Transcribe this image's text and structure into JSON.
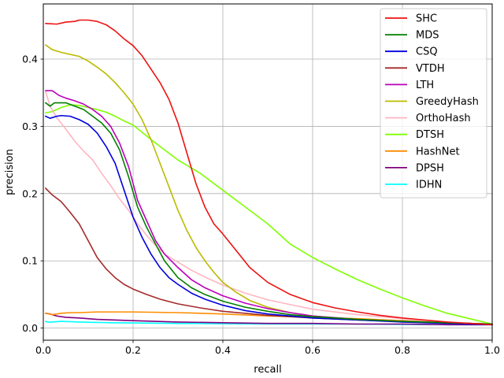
{
  "chart_data": {
    "type": "line",
    "title": "",
    "xlabel": "recall",
    "ylabel": "precision",
    "xlim": [
      0.0,
      1.0
    ],
    "ylim": [
      -0.018,
      0.482
    ],
    "xticks": [
      0.0,
      0.2,
      0.4,
      0.6,
      0.8,
      1.0
    ],
    "xtick_labels": [
      "0.0",
      "0.2",
      "0.4",
      "0.6",
      "0.8",
      "1.0"
    ],
    "yticks": [
      0.0,
      0.1,
      0.2,
      0.3,
      0.4
    ],
    "ytick_labels": [
      "0.0",
      "0.1",
      "0.2",
      "0.3",
      "0.4"
    ],
    "grid": true,
    "legend_position": "top-right",
    "series": [
      {
        "name": "SHC",
        "color": "#ee1111",
        "x": [
          0.005,
          0.03,
          0.05,
          0.07,
          0.08,
          0.1,
          0.12,
          0.14,
          0.16,
          0.18,
          0.2,
          0.22,
          0.24,
          0.26,
          0.28,
          0.3,
          0.32,
          0.34,
          0.36,
          0.38,
          0.4,
          0.43,
          0.46,
          0.5,
          0.55,
          0.6,
          0.65,
          0.7,
          0.75,
          0.8,
          0.85,
          0.9,
          0.95,
          1.0
        ],
        "y": [
          0.453,
          0.452,
          0.455,
          0.456,
          0.458,
          0.458,
          0.456,
          0.451,
          0.442,
          0.43,
          0.42,
          0.405,
          0.385,
          0.365,
          0.34,
          0.305,
          0.26,
          0.215,
          0.18,
          0.155,
          0.14,
          0.115,
          0.09,
          0.068,
          0.05,
          0.038,
          0.03,
          0.024,
          0.019,
          0.015,
          0.012,
          0.009,
          0.007,
          0.005
        ]
      },
      {
        "name": "MDS",
        "color": "#008000",
        "x": [
          0.005,
          0.015,
          0.025,
          0.05,
          0.07,
          0.09,
          0.11,
          0.13,
          0.15,
          0.17,
          0.19,
          0.21,
          0.23,
          0.25,
          0.27,
          0.3,
          0.33,
          0.36,
          0.4,
          0.45,
          0.5,
          0.55,
          0.6,
          0.7,
          0.8,
          0.9,
          1.0
        ],
        "y": [
          0.335,
          0.33,
          0.335,
          0.335,
          0.33,
          0.325,
          0.315,
          0.305,
          0.29,
          0.265,
          0.225,
          0.18,
          0.15,
          0.125,
          0.1,
          0.075,
          0.06,
          0.05,
          0.04,
          0.031,
          0.025,
          0.02,
          0.017,
          0.013,
          0.01,
          0.008,
          0.006
        ]
      },
      {
        "name": "CSQ",
        "color": "#0000dd",
        "x": [
          0.005,
          0.015,
          0.03,
          0.04,
          0.06,
          0.08,
          0.1,
          0.12,
          0.14,
          0.16,
          0.18,
          0.2,
          0.22,
          0.24,
          0.26,
          0.28,
          0.3,
          0.33,
          0.36,
          0.4,
          0.45,
          0.5,
          0.6,
          0.7,
          0.8,
          0.9,
          1.0
        ],
        "y": [
          0.315,
          0.312,
          0.315,
          0.316,
          0.315,
          0.31,
          0.303,
          0.29,
          0.27,
          0.245,
          0.205,
          0.165,
          0.135,
          0.11,
          0.09,
          0.075,
          0.065,
          0.052,
          0.043,
          0.034,
          0.026,
          0.021,
          0.015,
          0.012,
          0.009,
          0.007,
          0.005
        ]
      },
      {
        "name": "VTDH",
        "color": "#a52a2a",
        "x": [
          0.005,
          0.02,
          0.04,
          0.06,
          0.08,
          0.1,
          0.12,
          0.14,
          0.16,
          0.18,
          0.2,
          0.23,
          0.26,
          0.3,
          0.35,
          0.4,
          0.5,
          0.6,
          0.7,
          0.8,
          0.9,
          1.0
        ],
        "y": [
          0.208,
          0.198,
          0.188,
          0.172,
          0.155,
          0.13,
          0.105,
          0.088,
          0.075,
          0.065,
          0.058,
          0.05,
          0.043,
          0.036,
          0.03,
          0.025,
          0.019,
          0.015,
          0.012,
          0.01,
          0.008,
          0.006
        ]
      },
      {
        "name": "LTH",
        "color": "#bb00bb",
        "x": [
          0.005,
          0.02,
          0.035,
          0.05,
          0.07,
          0.09,
          0.11,
          0.13,
          0.15,
          0.17,
          0.19,
          0.21,
          0.23,
          0.25,
          0.27,
          0.3,
          0.33,
          0.36,
          0.4,
          0.45,
          0.5,
          0.55,
          0.6,
          0.7,
          0.8,
          0.9,
          1.0
        ],
        "y": [
          0.353,
          0.353,
          0.346,
          0.342,
          0.338,
          0.333,
          0.325,
          0.315,
          0.3,
          0.275,
          0.24,
          0.19,
          0.16,
          0.13,
          0.11,
          0.09,
          0.072,
          0.06,
          0.048,
          0.037,
          0.029,
          0.023,
          0.018,
          0.013,
          0.01,
          0.008,
          0.006
        ]
      },
      {
        "name": "GreedyHash",
        "color": "#bbbb00",
        "x": [
          0.005,
          0.02,
          0.04,
          0.06,
          0.08,
          0.1,
          0.12,
          0.14,
          0.16,
          0.18,
          0.2,
          0.22,
          0.24,
          0.26,
          0.28,
          0.3,
          0.32,
          0.34,
          0.36,
          0.38,
          0.4,
          0.43,
          0.46,
          0.5,
          0.55,
          0.6,
          0.7,
          0.8,
          0.9,
          1.0
        ],
        "y": [
          0.421,
          0.414,
          0.41,
          0.407,
          0.404,
          0.397,
          0.388,
          0.378,
          0.365,
          0.35,
          0.333,
          0.31,
          0.28,
          0.245,
          0.21,
          0.175,
          0.145,
          0.12,
          0.1,
          0.083,
          0.068,
          0.053,
          0.041,
          0.031,
          0.023,
          0.018,
          0.013,
          0.01,
          0.008,
          0.006
        ]
      },
      {
        "name": "OrthoHash",
        "color": "#ffb6c1",
        "x": [
          0.005,
          0.015,
          0.03,
          0.05,
          0.07,
          0.09,
          0.11,
          0.13,
          0.15,
          0.17,
          0.19,
          0.21,
          0.23,
          0.25,
          0.27,
          0.3,
          0.33,
          0.36,
          0.4,
          0.45,
          0.5,
          0.55,
          0.6,
          0.7,
          0.8,
          0.9,
          1.0
        ],
        "y": [
          0.352,
          0.33,
          0.313,
          0.296,
          0.278,
          0.263,
          0.25,
          0.23,
          0.212,
          0.192,
          0.175,
          0.155,
          0.138,
          0.123,
          0.11,
          0.098,
          0.086,
          0.076,
          0.064,
          0.052,
          0.042,
          0.035,
          0.028,
          0.02,
          0.014,
          0.009,
          0.005
        ]
      },
      {
        "name": "DTSH",
        "color": "#7fff00",
        "x": [
          0.005,
          0.02,
          0.04,
          0.06,
          0.08,
          0.1,
          0.12,
          0.14,
          0.16,
          0.18,
          0.2,
          0.25,
          0.3,
          0.35,
          0.4,
          0.45,
          0.5,
          0.55,
          0.6,
          0.65,
          0.7,
          0.75,
          0.8,
          0.85,
          0.9,
          0.95,
          1.0
        ],
        "y": [
          0.32,
          0.322,
          0.328,
          0.332,
          0.331,
          0.328,
          0.325,
          0.321,
          0.315,
          0.308,
          0.302,
          0.275,
          0.25,
          0.23,
          0.205,
          0.18,
          0.155,
          0.125,
          0.105,
          0.088,
          0.072,
          0.058,
          0.045,
          0.033,
          0.022,
          0.014,
          0.006
        ]
      },
      {
        "name": "HashNet",
        "color": "#ff8c00",
        "x": [
          0.005,
          0.02,
          0.04,
          0.06,
          0.08,
          0.12,
          0.2,
          0.3,
          0.4,
          0.5,
          0.6,
          0.7,
          0.8,
          0.9,
          1.0
        ],
        "y": [
          0.022,
          0.02,
          0.022,
          0.023,
          0.023,
          0.024,
          0.024,
          0.023,
          0.021,
          0.018,
          0.016,
          0.014,
          0.011,
          0.008,
          0.006
        ]
      },
      {
        "name": "DPSH",
        "color": "#800080",
        "x": [
          0.005,
          0.015,
          0.03,
          0.05,
          0.08,
          0.12,
          0.2,
          0.3,
          0.4,
          0.5,
          0.6,
          0.7,
          0.8,
          0.9,
          1.0
        ],
        "y": [
          0.022,
          0.021,
          0.018,
          0.016,
          0.015,
          0.013,
          0.011,
          0.009,
          0.008,
          0.007,
          0.007,
          0.006,
          0.006,
          0.005,
          0.005
        ]
      },
      {
        "name": "IDHN",
        "color": "#00ffff",
        "x": [
          0.005,
          0.01,
          0.02,
          0.04,
          0.08,
          0.15,
          0.3,
          0.5,
          0.7,
          0.9,
          1.0
        ],
        "y": [
          0.01,
          0.009,
          0.009,
          0.01,
          0.009,
          0.008,
          0.007,
          0.006,
          0.006,
          0.005,
          0.005
        ]
      }
    ]
  }
}
